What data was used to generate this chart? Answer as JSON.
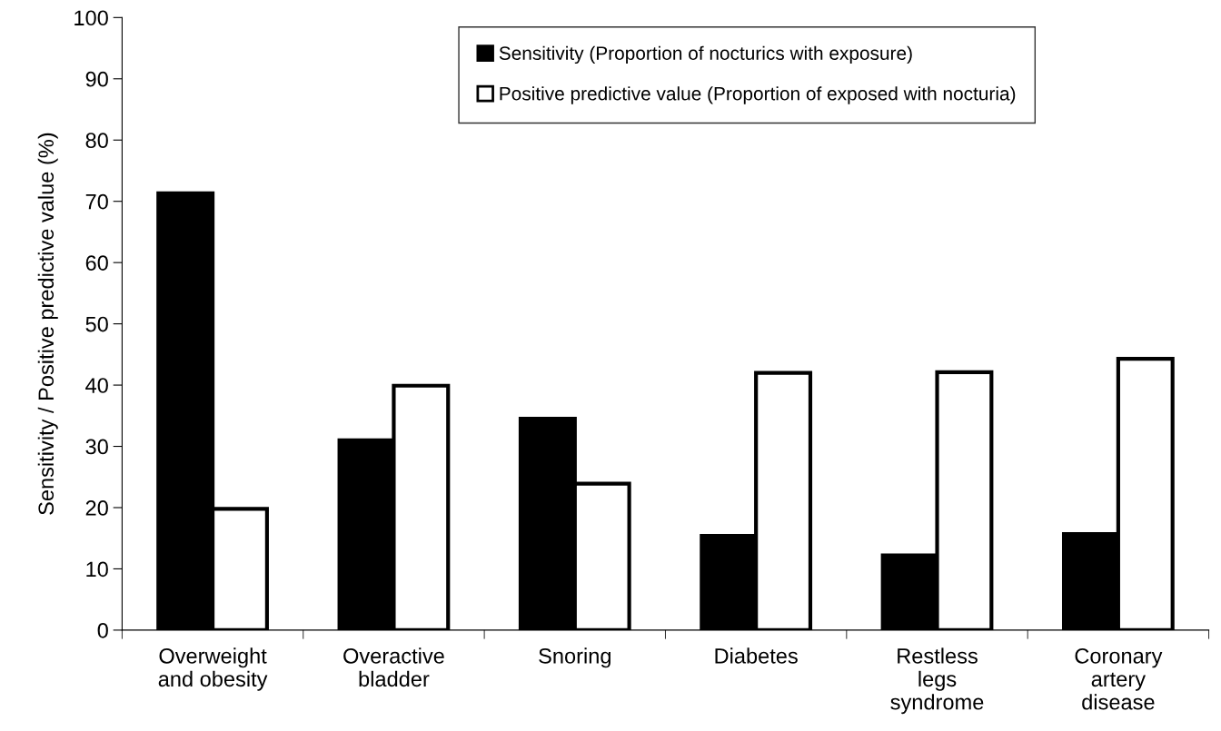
{
  "chart_data": {
    "type": "bar",
    "ylabel": "Sensitivity / Positive predictive value (%)",
    "categories": [
      "Overweight\nand obesity",
      "Overactive\nbladder",
      "Snoring",
      "Diabetes",
      "Restless\nlegs\nsyndrome",
      "Coronary\nartery\ndisease"
    ],
    "series": [
      {
        "name": "Sensitivity (Proportion of nocturics with exposure)",
        "color": "#000000",
        "values": [
          71.3,
          31.0,
          34.5,
          15.4,
          12.2,
          15.7
        ]
      },
      {
        "name": "Positive predictive value (Proportion of exposed with nocturia)",
        "color": "#ffffff",
        "values": [
          19.8,
          39.9,
          23.9,
          42.0,
          42.1,
          44.3
        ]
      }
    ],
    "ylim": [
      0,
      100
    ],
    "yticks": [
      0,
      10,
      20,
      30,
      40,
      50,
      60,
      70,
      80,
      90,
      100
    ],
    "grid": false,
    "legend": "top"
  }
}
